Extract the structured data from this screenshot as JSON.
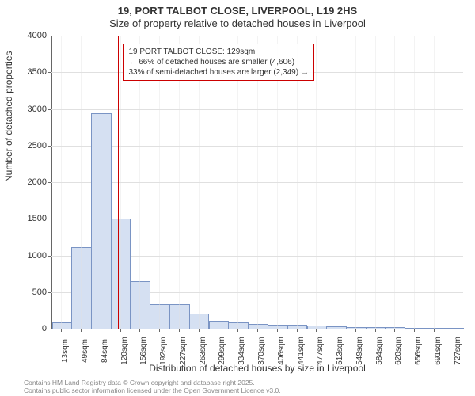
{
  "title": "19, PORT TALBOT CLOSE, LIVERPOOL, L19 2HS",
  "subtitle": "Size of property relative to detached houses in Liverpool",
  "y_axis": {
    "label": "Number of detached properties",
    "max": 4000,
    "ticks": [
      0,
      500,
      1000,
      1500,
      2000,
      2500,
      3000,
      3500,
      4000
    ]
  },
  "x_axis": {
    "label": "Distribution of detached houses by size in Liverpool",
    "tick_labels": [
      "13sqm",
      "49sqm",
      "84sqm",
      "120sqm",
      "156sqm",
      "192sqm",
      "227sqm",
      "263sqm",
      "299sqm",
      "334sqm",
      "370sqm",
      "406sqm",
      "441sqm",
      "477sqm",
      "513sqm",
      "549sqm",
      "584sqm",
      "620sqm",
      "656sqm",
      "691sqm",
      "727sqm"
    ]
  },
  "histogram": {
    "bar_color": "#d5e0f2",
    "bar_border": "#7a94c4",
    "bar_width": 0.95,
    "values": [
      80,
      1100,
      2930,
      1490,
      640,
      320,
      320,
      200,
      100,
      80,
      50,
      40,
      40,
      30,
      20,
      15,
      10,
      8,
      5,
      3,
      2
    ]
  },
  "marker": {
    "color": "#cc0000",
    "position_sqm": 129,
    "annotation_line1": "19 PORT TALBOT CLOSE: 129sqm",
    "annotation_line2": "← 66% of detached houses are smaller (4,606)",
    "annotation_line3": "33% of semi-detached houses are larger (2,349) →"
  },
  "footer": {
    "line1": "Contains HM Land Registry data © Crown copyright and database right 2025.",
    "line2": "Contains public sector information licensed under the Open Government Licence v3.0."
  },
  "colors": {
    "background": "#ffffff",
    "grid": "#e0e0e0",
    "axis": "#666666",
    "text": "#333333",
    "footer_text": "#888888"
  },
  "fonts": {
    "title_size": 13,
    "label_size": 12,
    "tick_size": 11,
    "annotation_size": 10,
    "footer_size": 8.5
  }
}
